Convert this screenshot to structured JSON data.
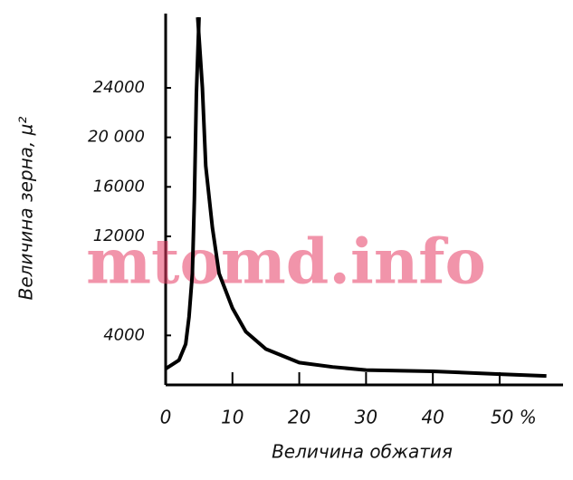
{
  "chart_data": {
    "type": "line",
    "x_label": "Величина обжатия",
    "y_label": "Величина зерна, µ²",
    "watermark": "mtomd.info",
    "xlim": [
      0,
      58
    ],
    "ylim": [
      0,
      30000
    ],
    "xticks": [
      0,
      10,
      20,
      30,
      40,
      {
        "value": 50,
        "label": "50 %"
      }
    ],
    "yticks": [
      4000,
      12000,
      16000,
      {
        "value": 20000,
        "label": "20 000"
      },
      24000
    ],
    "series": [
      {
        "color": "#000000",
        "x": [
          0,
          2,
          3,
          3.5,
          4,
          4.3,
          4.6,
          5
        ],
        "values": [
          1300,
          2000,
          3300,
          5500,
          9000,
          15000,
          23500,
          29700
        ]
      },
      {
        "color": "#000000",
        "x": [
          4.8,
          5.5,
          6,
          7,
          8,
          10,
          12,
          15,
          20,
          25,
          30,
          40,
          50,
          57
        ],
        "values": [
          29700,
          24000,
          17700,
          12700,
          9000,
          6200,
          4300,
          2900,
          1800,
          1450,
          1200,
          1100,
          870,
          720
        ]
      }
    ]
  }
}
